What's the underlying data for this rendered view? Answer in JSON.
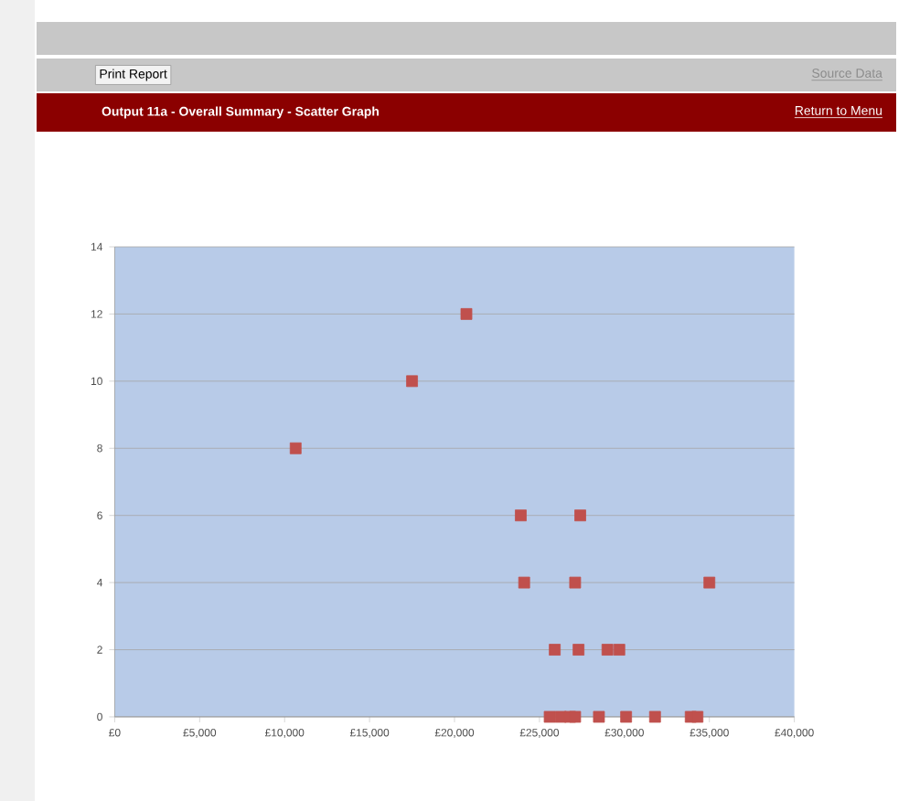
{
  "chart_data": {
    "type": "scatter",
    "title": "Output 11a - Overall Summary - Scatter Graph",
    "annotations": [
      "Print Report",
      "Source Data",
      "Return to Menu"
    ],
    "x": [
      10650,
      17500,
      20700,
      23900,
      27400,
      24100,
      27100,
      35000,
      25900,
      27300,
      29000,
      29700,
      25600,
      26250,
      26800,
      27100,
      28500,
      30100,
      31800,
      33900,
      34300
    ],
    "series": [
      {
        "color": "#c0504d",
        "values": [
          8,
          10,
          12,
          6,
          6,
          4,
          4,
          4,
          2,
          2,
          2,
          2,
          0,
          0,
          0,
          0,
          0,
          0,
          0,
          0,
          0
        ]
      }
    ],
    "xlim": [
      0,
      40000
    ],
    "xticks": [
      {
        "value": 0,
        "label": "£0"
      },
      {
        "value": 5000,
        "label": "£5,000"
      },
      {
        "value": 10000,
        "label": "£10,000"
      },
      {
        "value": 15000,
        "label": "£15,000"
      },
      {
        "value": 20000,
        "label": "£20,000"
      },
      {
        "value": 25000,
        "label": "£25,000"
      },
      {
        "value": 30000,
        "label": "£30,000"
      },
      {
        "value": 35000,
        "label": "£35,000"
      },
      {
        "value": 40000,
        "label": "£40,000"
      }
    ],
    "ylim": [
      0,
      14
    ],
    "yticks": [
      0,
      2,
      4,
      6,
      8,
      10,
      12,
      14
    ],
    "grid": "y",
    "marker": "square"
  }
}
